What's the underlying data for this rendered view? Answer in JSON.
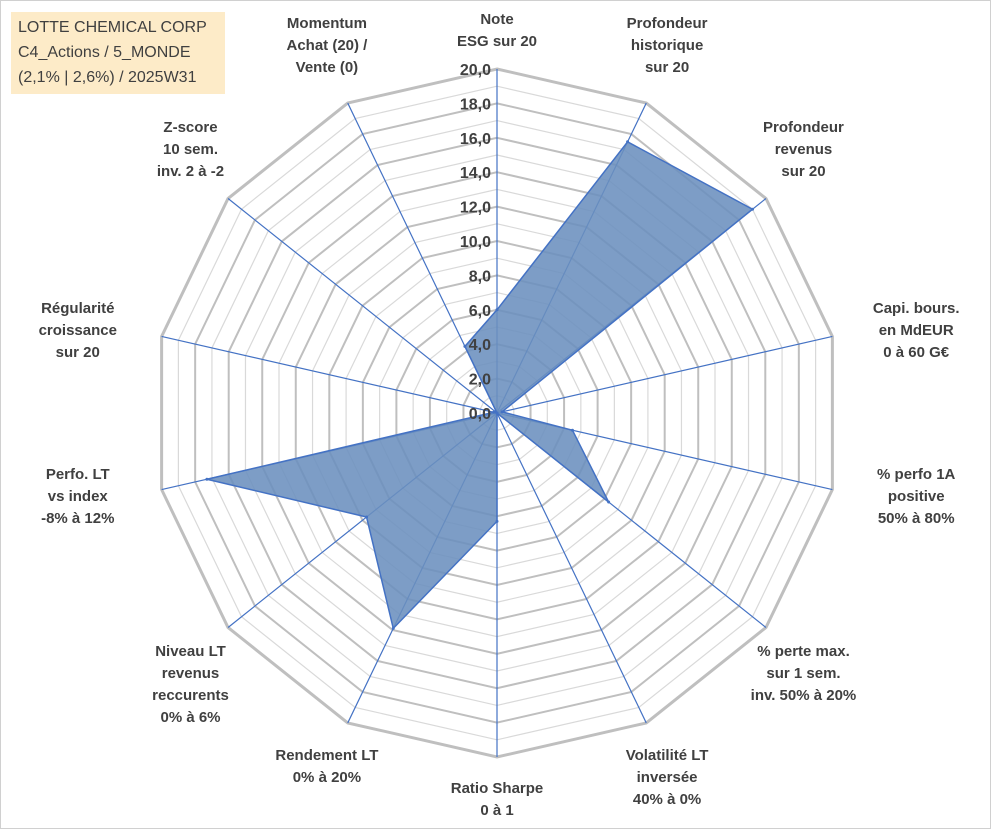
{
  "title_box": {
    "line1": "LOTTE CHEMICAL CORP",
    "line2": "C4_Actions / 5_MONDE",
    "line3": "(2,1% | 2,6%) / 2025W31"
  },
  "colors": {
    "fill": "#6b8fbe",
    "stroke": "#4472c4",
    "spoke": "#4472c4",
    "grid_major": "#bfbfbf",
    "grid_minor": "#d9d9d9",
    "title_bg": "#fdebc8"
  },
  "chart_data": {
    "type": "radar",
    "grid": true,
    "rlim": [
      0,
      20
    ],
    "r_ticks": [
      "0,0",
      "2,0",
      "4,0",
      "6,0",
      "8,0",
      "10,0",
      "12,0",
      "14,0",
      "16,0",
      "18,0",
      "20,0"
    ],
    "axes": [
      {
        "label": [
          "Note",
          "ESG sur 20"
        ],
        "value": 6.0
      },
      {
        "label": [
          "Profondeur",
          "historique",
          "sur 20"
        ],
        "value": 17.5
      },
      {
        "label": [
          "Profondeur",
          "revenus",
          "sur 20"
        ],
        "value": 19.0
      },
      {
        "label": [
          "Capi. bours.",
          "en MdEUR",
          "0 à 60 G€"
        ],
        "value": 0.3
      },
      {
        "label": [
          "% perfo 1A",
          "positive",
          "50% à 80%"
        ],
        "value": 4.5
      },
      {
        "label": [
          "% perte max.",
          "sur 1 sem.",
          "inv. 50% à 20%"
        ],
        "value": 8.3
      },
      {
        "label": [
          "Volatilité LT",
          "inversée",
          "40% à 0%"
        ],
        "value": 0.0
      },
      {
        "label": [
          "Ratio Sharpe",
          "0 à 1"
        ],
        "value": 6.3
      },
      {
        "label": [
          "Rendement LT",
          "0% à 20%"
        ],
        "value": 13.9
      },
      {
        "label": [
          "Niveau LT",
          "revenus",
          "reccurents",
          "0% à 6%"
        ],
        "value": 9.7
      },
      {
        "label": [
          "Perfo. LT",
          "vs index",
          "-8% à 12%"
        ],
        "value": 17.3
      },
      {
        "label": [
          "Régularité",
          "croissance",
          "sur 20"
        ],
        "value": 0.2
      },
      {
        "label": [
          "Z-score",
          "10 sem.",
          "inv. 2 à -2"
        ],
        "value": 0.0
      },
      {
        "label": [
          "Momentum",
          "Achat (20) /",
          "Vente (0)"
        ],
        "value": 4.3
      }
    ]
  }
}
